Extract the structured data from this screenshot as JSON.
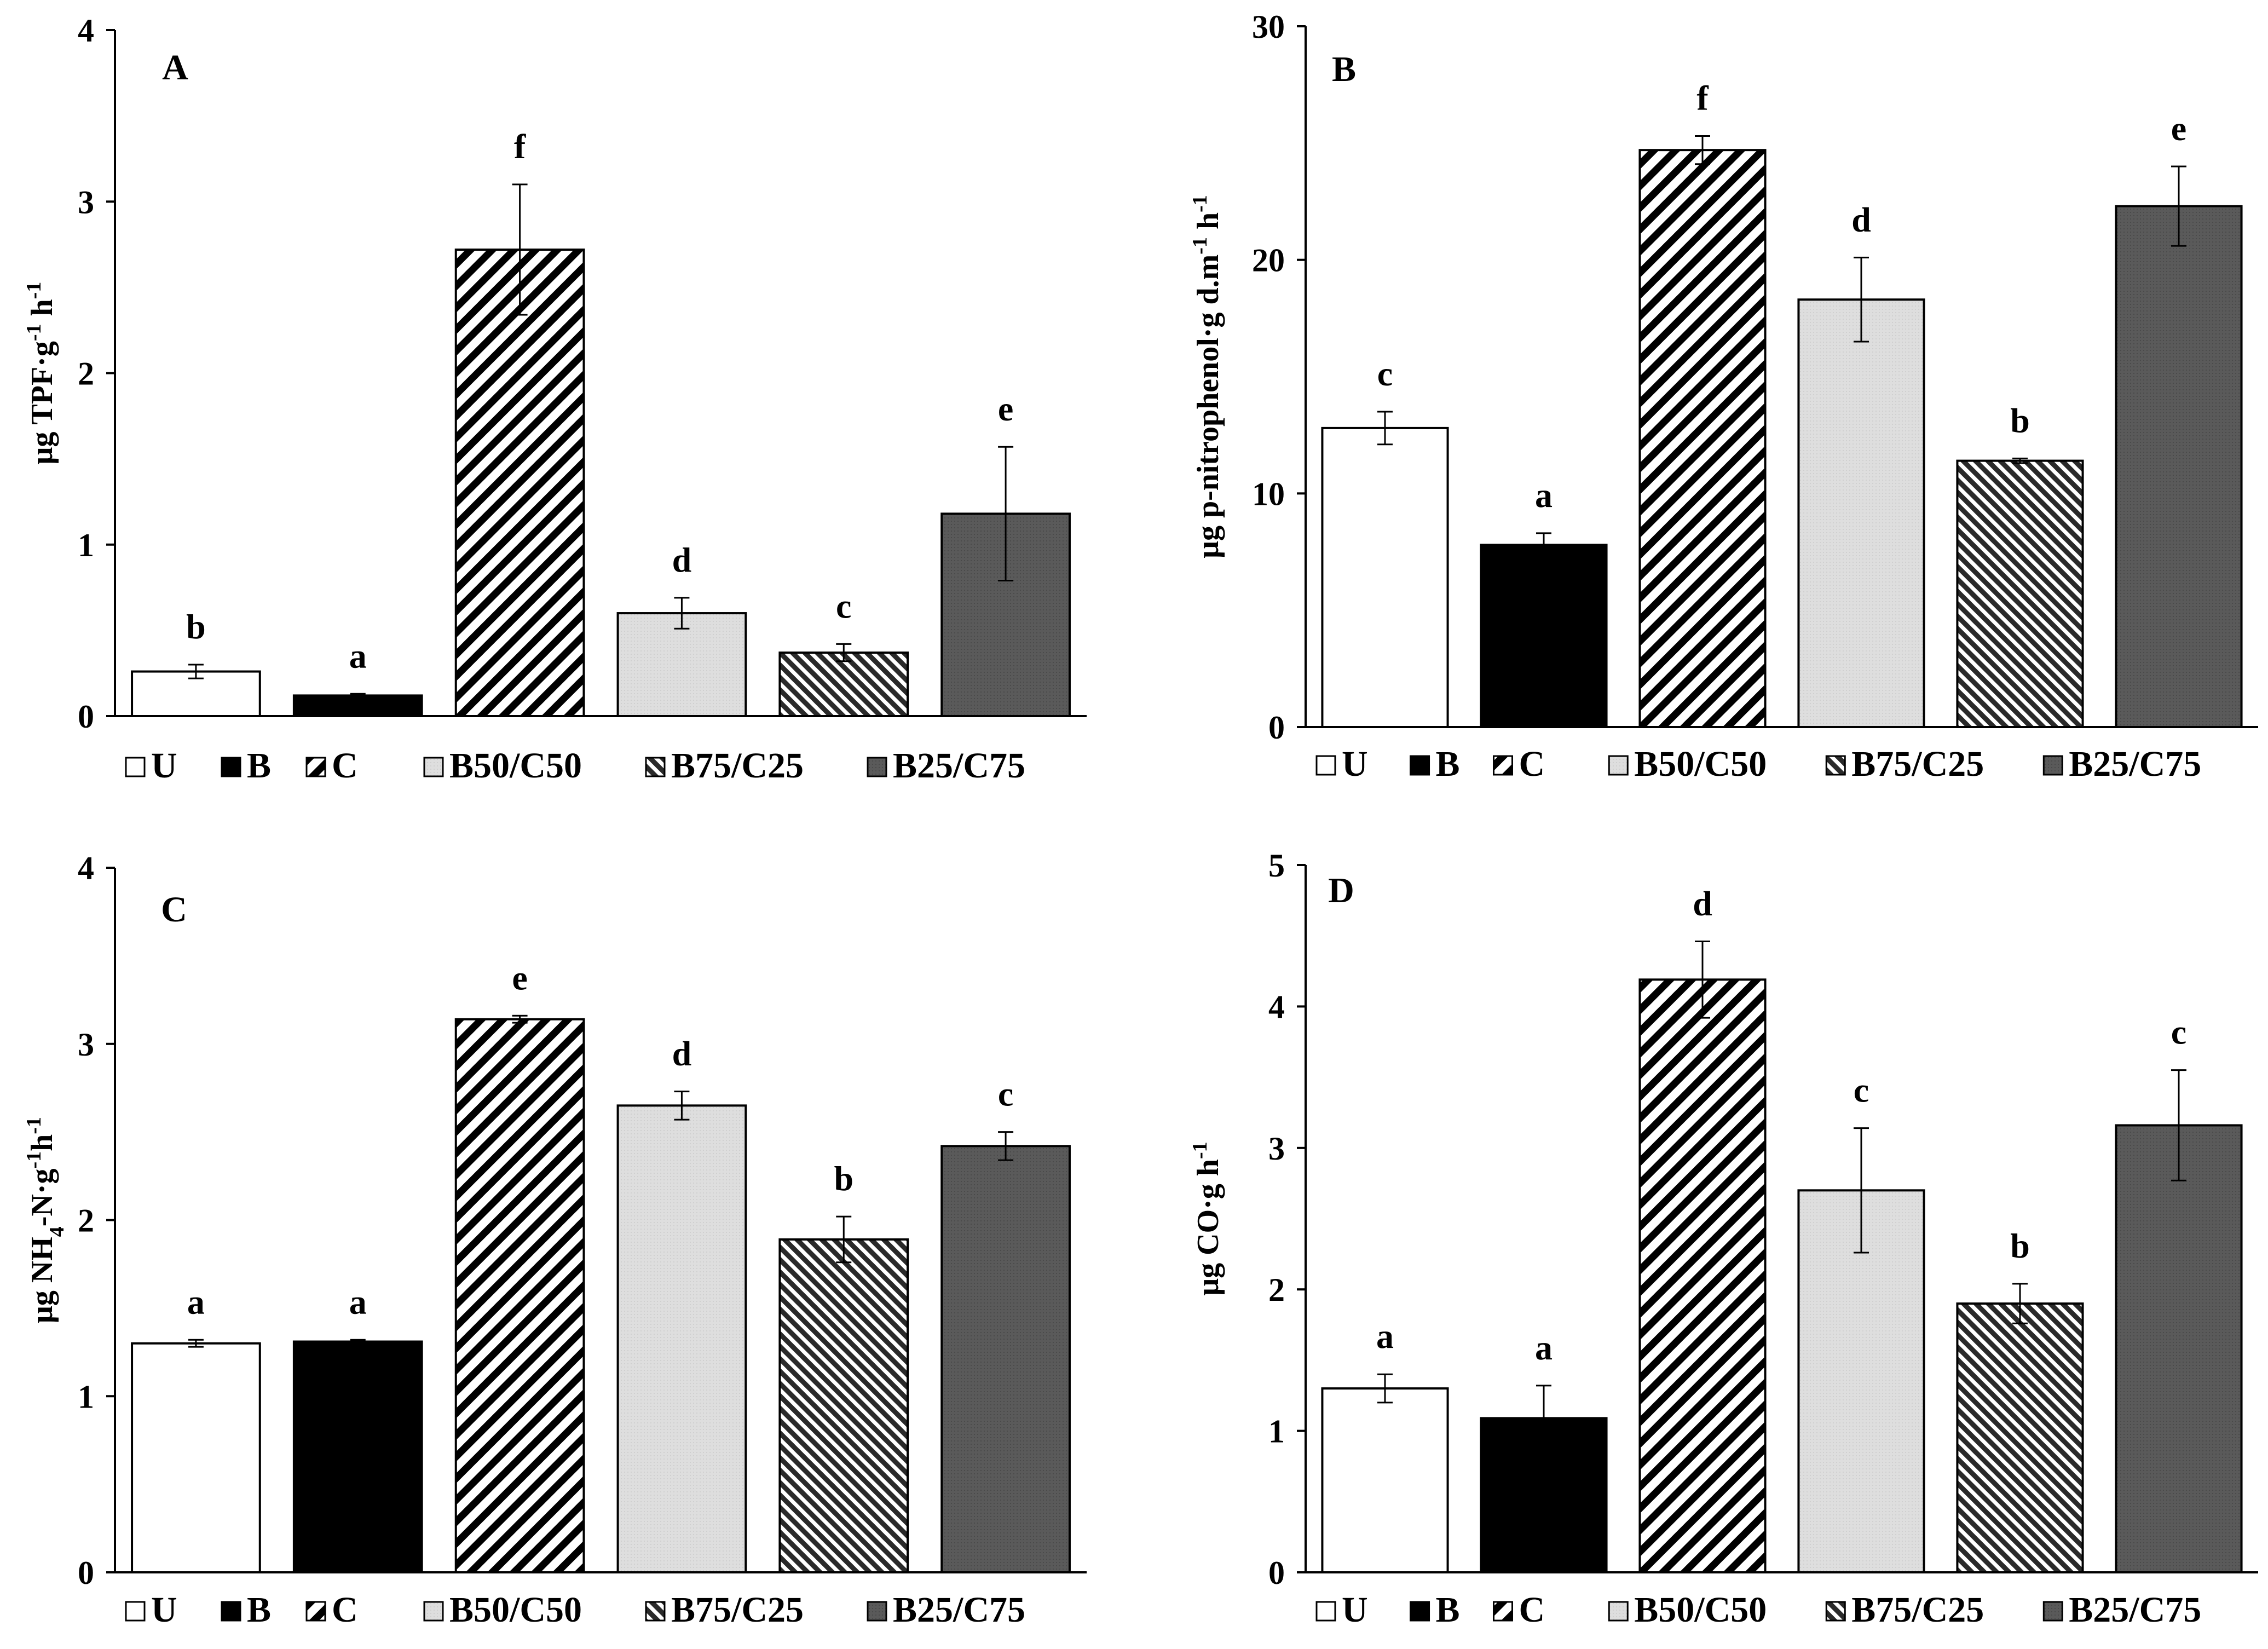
{
  "chart_data": [
    {
      "type": "bar",
      "panel": "A",
      "ylabel_parts": [
        {
          "t": "μg TPF·g"
        },
        {
          "t": "-1",
          "sup": true
        },
        {
          "t": " h"
        },
        {
          "t": "-1",
          "sup": true
        }
      ],
      "ylim": [
        0,
        4
      ],
      "yticks": [
        "0",
        "1",
        "2",
        "3",
        "4"
      ],
      "categories": [
        "U",
        "B",
        "C",
        "B50/C50",
        "B75/C25",
        "B25/C75"
      ],
      "values": [
        0.26,
        0.12,
        2.72,
        0.6,
        0.37,
        1.18
      ],
      "errors": [
        0.04,
        0.01,
        0.38,
        0.09,
        0.05,
        0.39
      ],
      "letters": [
        "b",
        "a",
        "f",
        "d",
        "c",
        "e"
      ]
    },
    {
      "type": "bar",
      "panel": "B",
      "ylabel_parts": [
        {
          "t": "μg  p-nitrophenol·g d.m"
        },
        {
          "t": "-1",
          "sup": true
        },
        {
          "t": " h"
        },
        {
          "t": "-1",
          "sup": true
        }
      ],
      "ylim": [
        0,
        30
      ],
      "yticks": [
        "0",
        "10",
        "20",
        "30"
      ],
      "categories": [
        "U",
        "B",
        "C",
        "B50/C50",
        "B75/C25",
        "B25/C75"
      ],
      "values": [
        12.8,
        7.8,
        24.7,
        18.3,
        11.4,
        22.3
      ],
      "errors": [
        0.7,
        0.5,
        0.6,
        1.8,
        0.1,
        1.7
      ],
      "letters": [
        "c",
        "a",
        "f",
        "d",
        "b",
        "e"
      ]
    },
    {
      "type": "bar",
      "panel": "C",
      "ylabel_parts": [
        {
          "t": "μg NH"
        },
        {
          "t": "4",
          "sub": true
        },
        {
          "t": "-N·g"
        },
        {
          "t": "-1",
          "sup": true
        },
        {
          "t": "h"
        },
        {
          "t": "-1",
          "sup": true
        }
      ],
      "ylim": [
        0,
        4
      ],
      "yticks": [
        "0",
        "1",
        "2",
        "3",
        "4"
      ],
      "categories": [
        "U",
        "B",
        "C",
        "B50/C50",
        "B75/C25",
        "B25/C75"
      ],
      "values": [
        1.3,
        1.31,
        3.14,
        2.65,
        1.89,
        2.42
      ],
      "errors": [
        0.02,
        0.01,
        0.02,
        0.08,
        0.13,
        0.08
      ],
      "letters": [
        "a",
        "a",
        "e",
        "d",
        "b",
        "c"
      ]
    },
    {
      "type": "bar",
      "panel": "D",
      "ylabel_parts": [
        {
          "t": "μg  CO·g h"
        },
        {
          "t": "-1",
          "sup": true
        }
      ],
      "ylim": [
        0,
        5
      ],
      "yticks": [
        "0",
        "1",
        "2",
        "3",
        "4",
        "5"
      ],
      "categories": [
        "U",
        "B",
        "C",
        "B50/C50",
        "B75/C25",
        "B25/C75"
      ],
      "values": [
        1.3,
        1.09,
        4.19,
        2.7,
        1.9,
        3.16
      ],
      "errors": [
        0.1,
        0.23,
        0.27,
        0.44,
        0.14,
        0.39
      ],
      "letters": [
        "a",
        "a",
        "d",
        "c",
        "b",
        "c"
      ]
    }
  ],
  "legend": [
    "U",
    "B",
    "C",
    "B50/C50",
    "B75/C25",
    "B25/C75"
  ],
  "colors": {
    "U": "#ffffff",
    "B": "#000000",
    "C_stripe": "#000000",
    "B50/C50": "#dcdcdc",
    "B75/C25_stripe": "#2a2a2a",
    "B25/C75": "#595959"
  }
}
